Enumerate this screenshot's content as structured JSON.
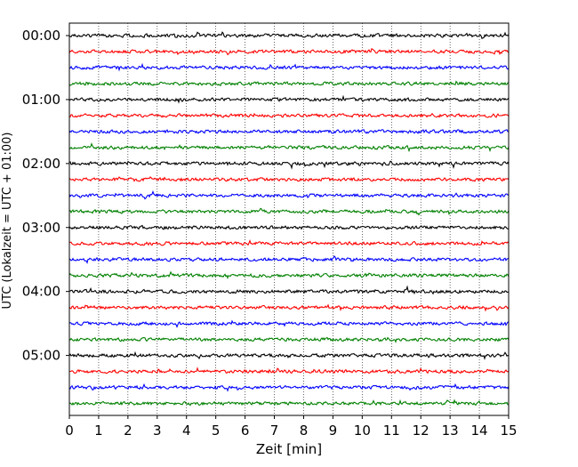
{
  "chart_data": {
    "type": "line",
    "title": "",
    "xlabel": "Zeit  [min]",
    "ylabel": "UTC (Lokalzeit = UTC + 01:00)",
    "xlim": [
      0,
      15
    ],
    "x_ticks": [
      "0",
      "1",
      "2",
      "3",
      "4",
      "5",
      "6",
      "7",
      "8",
      "9",
      "10",
      "11",
      "12",
      "13",
      "14",
      "15"
    ],
    "y_ticks": [
      "00:00",
      "01:00",
      "02:00",
      "03:00",
      "04:00",
      "05:00"
    ],
    "grid": "vertical dotted lines at each minute",
    "legend": "none",
    "colors_cycle": [
      "#000000",
      "#ff0000",
      "#0000ff",
      "#008000"
    ],
    "rows_per_hour": 4,
    "minutes_per_row": 15,
    "series": [
      {
        "start": "00:00",
        "color": "#000000"
      },
      {
        "start": "00:15",
        "color": "#ff0000"
      },
      {
        "start": "00:30",
        "color": "#0000ff"
      },
      {
        "start": "00:45",
        "color": "#008000"
      },
      {
        "start": "01:00",
        "color": "#000000"
      },
      {
        "start": "01:15",
        "color": "#ff0000"
      },
      {
        "start": "01:30",
        "color": "#0000ff"
      },
      {
        "start": "01:45",
        "color": "#008000"
      },
      {
        "start": "02:00",
        "color": "#000000"
      },
      {
        "start": "02:15",
        "color": "#ff0000"
      },
      {
        "start": "02:30",
        "color": "#0000ff"
      },
      {
        "start": "02:45",
        "color": "#008000"
      },
      {
        "start": "03:00",
        "color": "#000000"
      },
      {
        "start": "03:15",
        "color": "#ff0000"
      },
      {
        "start": "03:30",
        "color": "#0000ff"
      },
      {
        "start": "03:45",
        "color": "#008000"
      },
      {
        "start": "04:00",
        "color": "#000000"
      },
      {
        "start": "04:15",
        "color": "#ff0000"
      },
      {
        "start": "04:30",
        "color": "#0000ff"
      },
      {
        "start": "04:45",
        "color": "#008000"
      },
      {
        "start": "05:00",
        "color": "#000000"
      },
      {
        "start": "05:15",
        "color": "#ff0000"
      },
      {
        "start": "05:30",
        "color": "#0000ff"
      },
      {
        "start": "05:45",
        "color": "#008000"
      }
    ]
  }
}
